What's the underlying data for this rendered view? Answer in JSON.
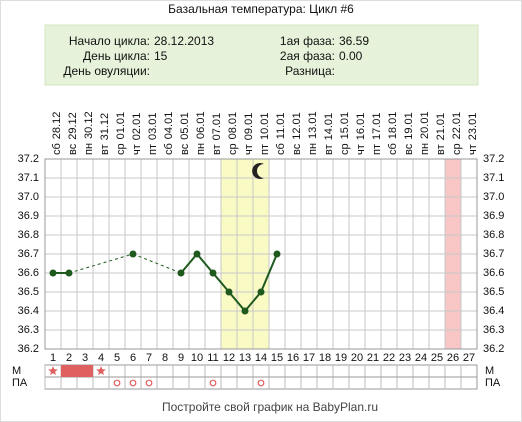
{
  "info": {
    "left": [
      {
        "label": "Начало цикла:",
        "value": "28.12.2013"
      },
      {
        "label": "День цикла:",
        "value": "15"
      },
      {
        "label": "День овуляции:"
      }
    ],
    "right": [
      {
        "label": "1ая фаза:",
        "value": "36.59"
      },
      {
        "label": "2ая фаза:",
        "value": "0.00"
      },
      {
        "label": "Разница:"
      }
    ]
  },
  "chart_data": {
    "type": "line",
    "title": "Базальная температура: Цикл #6",
    "footer": "Постройте свой график на BabyPlan.ru",
    "weekdays": [
      "сб",
      "вс",
      "пн",
      "вт",
      "ср",
      "чт",
      "пт",
      "сб",
      "вс",
      "пн",
      "вт",
      "ср",
      "чт",
      "пт",
      "сб",
      "вс",
      "пн",
      "вт",
      "ср",
      "чт",
      "пт",
      "сб",
      "вс",
      "пн",
      "вт",
      "ср",
      "чт"
    ],
    "dates": [
      "28.12",
      "29.12",
      "30.12",
      "31.12",
      "01.01",
      "02.01",
      "03.01",
      "04.01",
      "05.01",
      "06.01",
      "07.01",
      "08.01",
      "09.01",
      "10.01",
      "11.01",
      "12.01",
      "13.01",
      "14.01",
      "15.01",
      "16.01",
      "17.01",
      "18.01",
      "19.01",
      "20.01",
      "21.01",
      "22.01",
      "23.01"
    ],
    "x": [
      1,
      2,
      3,
      4,
      5,
      6,
      7,
      8,
      9,
      10,
      11,
      12,
      13,
      14,
      15,
      16,
      17,
      18,
      19,
      20,
      21,
      22,
      23,
      24,
      25,
      26,
      27
    ],
    "xticks": [
      1,
      2,
      3,
      4,
      5,
      6,
      7,
      8,
      9,
      10,
      11,
      12,
      13,
      14,
      15,
      16,
      17,
      18,
      19,
      20,
      21,
      22,
      23,
      24,
      25,
      26,
      27
    ],
    "xlim": [
      0.5,
      27.5
    ],
    "series": [
      {
        "color": "#1e5a1e",
        "values": [
          36.6,
          36.6,
          null,
          null,
          null,
          36.7,
          null,
          null,
          36.6,
          36.7,
          36.6,
          36.5,
          36.4,
          36.5,
          36.7,
          null,
          null,
          null,
          null,
          null,
          null,
          null,
          null,
          null,
          null,
          null,
          null
        ]
      }
    ],
    "ylim": [
      36.2,
      37.2
    ],
    "yticks": [
      {
        "value": 37.2,
        "label": "37.2"
      },
      {
        "value": 37.1,
        "label": "37.1"
      },
      {
        "value": 37,
        "label": "37.0"
      },
      {
        "value": 36.9,
        "label": "36.9"
      },
      {
        "value": 36.8,
        "label": "36.8"
      },
      {
        "value": 36.7,
        "label": "36.7"
      },
      {
        "value": 36.6,
        "label": "36.6"
      },
      {
        "value": 36.5,
        "label": "36.5"
      },
      {
        "value": 36.4,
        "label": "36.4"
      },
      {
        "value": 36.3,
        "label": "36.3"
      },
      {
        "value": 36.2,
        "label": "36.2"
      }
    ],
    "grid": true,
    "bands": [
      {
        "from": 12,
        "to": 14,
        "color": "#fafac4"
      },
      {
        "from": 26,
        "to": 26,
        "color": "#f9c6c6"
      }
    ],
    "moon_day": 14,
    "m_row": {
      "label": "М",
      "stars": [
        1,
        4
      ],
      "filled": [
        2,
        3
      ],
      "color": "#e06060"
    },
    "pa_row": {
      "label": "ПА",
      "circles": [
        5,
        6,
        7,
        11,
        14
      ],
      "color": "#e06060"
    }
  }
}
